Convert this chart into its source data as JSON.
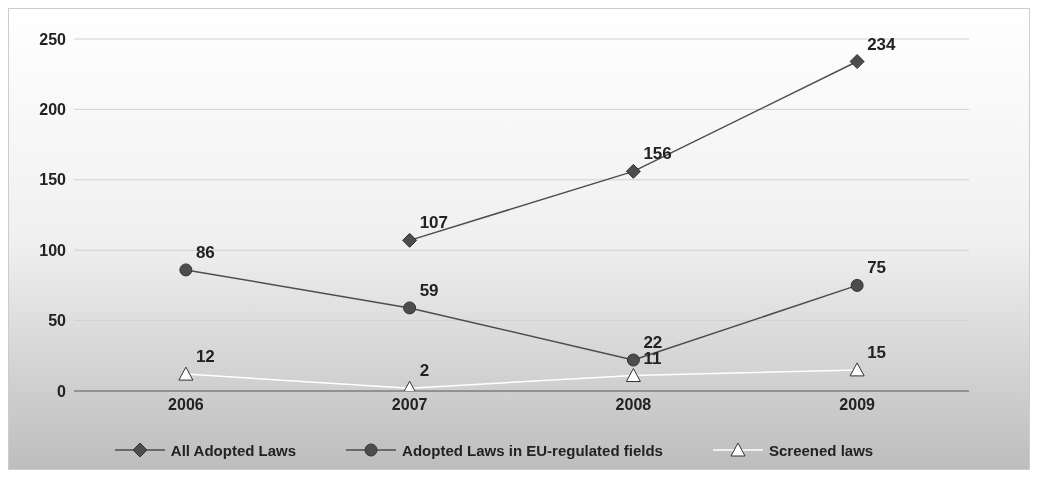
{
  "chart_data": {
    "type": "line",
    "categories": [
      "2006",
      "2007",
      "2008",
      "2009"
    ],
    "series": [
      {
        "name": "All Adopted Laws",
        "color": "#4d4d4d",
        "marker": "diamond",
        "values": [
          null,
          107,
          156,
          234
        ]
      },
      {
        "name": "Adopted Laws in EU-regulated fields",
        "color": "#4d4d4d",
        "marker": "circle",
        "values": [
          86,
          59,
          22,
          75
        ]
      },
      {
        "name": "Screened laws",
        "color": "#ffffff",
        "marker": "triangle",
        "values": [
          12,
          2,
          11,
          15
        ]
      }
    ],
    "ylim": [
      0,
      250
    ],
    "yticks": [
      0,
      50,
      100,
      150,
      200,
      250
    ],
    "grid": "y",
    "legend": "bottom",
    "data_labels": true
  }
}
